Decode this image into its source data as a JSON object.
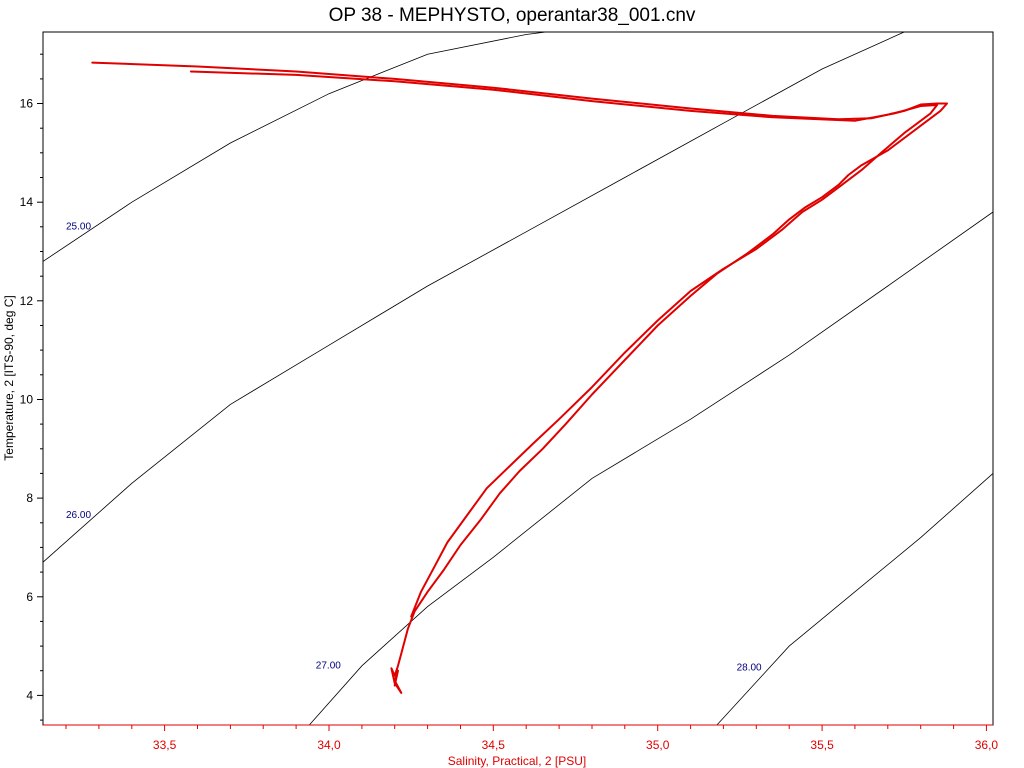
{
  "chart_data": {
    "type": "line",
    "title": "OP 38 - MEPHYSTO, operantar38_001.cnv",
    "xlabel": "Salinity, Practical, 2 [PSU]",
    "ylabel": "Temperature, 2 [ITS-90, deg C]",
    "xlim": [
      33.13,
      36.02
    ],
    "ylim": [
      3.4,
      17.45
    ],
    "x_ticks": [
      33.5,
      34.0,
      34.5,
      35.0,
      35.5,
      36.0
    ],
    "x_tick_labels": [
      "33,5",
      "34,0",
      "34,5",
      "35,0",
      "35,5",
      "36,0"
    ],
    "y_ticks": [
      4,
      6,
      8,
      10,
      12,
      14,
      16
    ],
    "y_tick_labels": [
      "4",
      "6",
      "8",
      "10",
      "12",
      "14",
      "16"
    ],
    "grid": false,
    "colors": {
      "profile": "#e00000",
      "isopycnal": "#000000",
      "axis_x": "#e00000",
      "axis_y": "#000000",
      "iso_label": "#000080"
    },
    "series": [
      {
        "x": [
          33.28,
          33.6,
          33.9,
          34.2,
          34.5,
          34.8,
          35.1,
          35.35,
          35.55,
          35.65,
          35.75,
          35.8,
          35.85,
          35.88,
          35.86,
          35.8,
          35.7,
          35.62,
          35.58,
          35.55,
          35.5,
          35.45,
          35.4,
          35.35,
          35.27,
          35.18,
          35.1,
          35.0,
          34.9,
          34.8,
          34.72,
          34.65,
          34.58,
          34.52,
          34.46,
          34.4,
          34.35,
          34.3,
          34.26,
          34.24,
          34.23,
          34.22,
          34.21,
          34.2,
          34.19,
          34.2,
          34.22,
          34.2,
          34.21,
          34.2
        ],
        "y": [
          16.83,
          16.75,
          16.65,
          16.5,
          16.32,
          16.1,
          15.9,
          15.75,
          15.68,
          15.7,
          15.85,
          15.98,
          16.0,
          16.0,
          15.85,
          15.55,
          15.05,
          14.75,
          14.55,
          14.35,
          14.1,
          13.9,
          13.65,
          13.35,
          12.95,
          12.55,
          12.1,
          11.5,
          10.8,
          10.1,
          9.5,
          9.0,
          8.55,
          8.1,
          7.55,
          7.05,
          6.55,
          6.1,
          5.7,
          5.35,
          5.1,
          4.85,
          4.6,
          4.4,
          4.55,
          4.25,
          4.05,
          4.3,
          4.5,
          4.2
        ]
      },
      {
        "x": [
          33.58,
          33.9,
          34.2,
          34.5,
          34.8,
          35.1,
          35.35,
          35.6,
          35.72,
          35.8,
          35.85,
          35.83,
          35.75,
          35.68,
          35.62,
          35.55,
          35.5,
          35.44,
          35.38,
          35.3,
          35.2,
          35.1,
          35.0,
          34.9,
          34.8,
          34.7,
          34.62,
          34.55,
          34.48,
          34.42,
          34.36,
          34.32,
          34.28,
          34.25
        ],
        "y": [
          16.65,
          16.58,
          16.45,
          16.28,
          16.05,
          15.85,
          15.72,
          15.65,
          15.8,
          15.95,
          15.97,
          15.8,
          15.4,
          15.0,
          14.65,
          14.3,
          14.05,
          13.8,
          13.45,
          13.05,
          12.65,
          12.2,
          11.6,
          10.95,
          10.25,
          9.6,
          9.1,
          8.65,
          8.2,
          7.65,
          7.1,
          6.6,
          6.1,
          5.6
        ]
      }
    ],
    "isopycnals": [
      {
        "label": "25.00",
        "label_pos": {
          "s": 33.2,
          "t": 13.45
        },
        "s": [
          33.13,
          33.4,
          33.7,
          34.0,
          34.3,
          34.6,
          34.66
        ],
        "t": [
          12.8,
          14.0,
          15.2,
          16.2,
          17.0,
          17.4,
          17.45
        ]
      },
      {
        "label": "26.00",
        "label_pos": {
          "s": 33.2,
          "t": 7.6
        },
        "s": [
          33.13,
          33.4,
          33.7,
          34.0,
          34.3,
          34.6,
          34.9,
          35.2,
          35.5,
          35.75
        ],
        "t": [
          6.7,
          8.3,
          9.9,
          11.1,
          12.3,
          13.4,
          14.5,
          15.6,
          16.7,
          17.45
        ]
      },
      {
        "label": "27.00",
        "label_pos": {
          "s": 33.96,
          "t": 4.55
        },
        "s": [
          33.94,
          34.1,
          34.3,
          34.5,
          34.8,
          35.1,
          35.4,
          35.7,
          36.02
        ],
        "t": [
          3.4,
          4.6,
          5.8,
          6.8,
          8.4,
          9.6,
          10.9,
          12.3,
          13.8
        ]
      },
      {
        "label": "28.00",
        "label_pos": {
          "s": 35.24,
          "t": 4.5
        },
        "s": [
          35.18,
          35.4,
          35.6,
          35.8,
          36.02
        ],
        "t": [
          3.4,
          5.0,
          6.1,
          7.2,
          8.5
        ]
      }
    ]
  }
}
